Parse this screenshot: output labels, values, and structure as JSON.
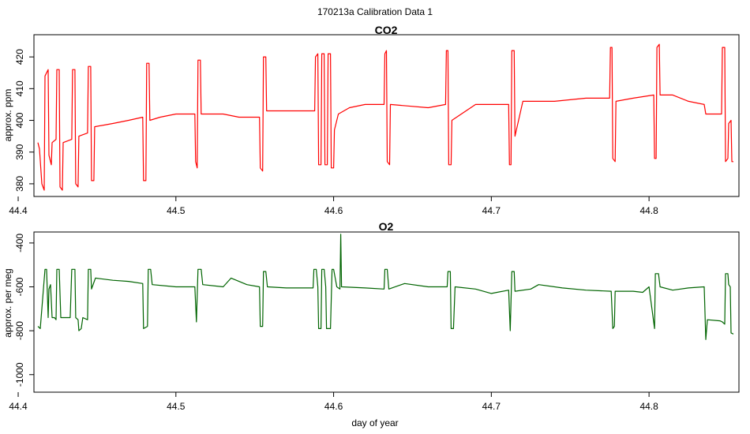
{
  "figure_title": "170213a   Calibration Data 1",
  "xlabel": "day of year",
  "chart_data": [
    {
      "type": "line",
      "title": "CO2",
      "xlabel": "",
      "ylabel": "approx. ppm",
      "xlim": [
        44.41,
        44.857
      ],
      "ylim": [
        376,
        427
      ],
      "xticks": [
        44.4,
        44.5,
        44.6,
        44.7,
        44.8
      ],
      "xtick_labels": [
        "44.4",
        "44.5",
        "44.6",
        "44.7",
        "44.8"
      ],
      "yticks": [
        380,
        390,
        400,
        410,
        420
      ],
      "ytick_labels": [
        "380",
        "390",
        "400",
        "410",
        "420"
      ],
      "grid": false,
      "legend": "none",
      "series": [
        {
          "color": "#ff0000",
          "values": [
            [
              44.4125,
              393
            ],
            [
              44.4135,
              391
            ],
            [
              44.415,
              380
            ],
            [
              44.4165,
              378
            ],
            [
              44.417,
              414
            ],
            [
              44.419,
              416
            ],
            [
              44.4195,
              389
            ],
            [
              44.421,
              386
            ],
            [
              44.4215,
              393
            ],
            [
              44.424,
              394
            ],
            [
              44.4245,
              416
            ],
            [
              44.426,
              416
            ],
            [
              44.4265,
              379
            ],
            [
              44.428,
              378
            ],
            [
              44.4285,
              393
            ],
            [
              44.434,
              394
            ],
            [
              44.4345,
              416
            ],
            [
              44.436,
              416
            ],
            [
              44.4365,
              380
            ],
            [
              44.438,
              379
            ],
            [
              44.4385,
              395
            ],
            [
              44.444,
              396
            ],
            [
              44.4445,
              417
            ],
            [
              44.446,
              417
            ],
            [
              44.4465,
              381
            ],
            [
              44.448,
              381
            ],
            [
              44.4485,
              398
            ],
            [
              44.46,
              399
            ],
            [
              44.47,
              400
            ],
            [
              44.479,
              401
            ],
            [
              44.4795,
              381
            ],
            [
              44.481,
              381
            ],
            [
              44.4815,
              418
            ],
            [
              44.483,
              418
            ],
            [
              44.4835,
              400
            ],
            [
              44.49,
              401
            ],
            [
              44.5,
              402
            ],
            [
              44.512,
              402
            ],
            [
              44.5125,
              387
            ],
            [
              44.5135,
              385
            ],
            [
              44.514,
              419
            ],
            [
              44.5155,
              419
            ],
            [
              44.516,
              402
            ],
            [
              44.53,
              402
            ],
            [
              44.54,
              401
            ],
            [
              44.553,
              401
            ],
            [
              44.5535,
              385
            ],
            [
              44.555,
              384
            ],
            [
              44.5555,
              420
            ],
            [
              44.557,
              420
            ],
            [
              44.5575,
              403
            ],
            [
              44.57,
              403
            ],
            [
              44.585,
              403
            ],
            [
              44.588,
              403
            ],
            [
              44.5885,
              420
            ],
            [
              44.59,
              421
            ],
            [
              44.5905,
              386
            ],
            [
              44.592,
              386
            ],
            [
              44.5925,
              421
            ],
            [
              44.594,
              421
            ],
            [
              44.5945,
              386
            ],
            [
              44.596,
              386
            ],
            [
              44.5965,
              421
            ],
            [
              44.598,
              421
            ],
            [
              44.5985,
              385
            ],
            [
              44.6,
              385
            ],
            [
              44.6005,
              397
            ],
            [
              44.603,
              402
            ],
            [
              44.61,
              404
            ],
            [
              44.62,
              405
            ],
            [
              44.632,
              405
            ],
            [
              44.6325,
              421
            ],
            [
              44.6335,
              422
            ],
            [
              44.634,
              387
            ],
            [
              44.6355,
              386
            ],
            [
              44.636,
              405
            ],
            [
              44.66,
              404
            ],
            [
              44.671,
              405
            ],
            [
              44.6715,
              422
            ],
            [
              44.6725,
              422
            ],
            [
              44.673,
              386
            ],
            [
              44.6745,
              386
            ],
            [
              44.675,
              400
            ],
            [
              44.69,
              405
            ],
            [
              44.705,
              405
            ],
            [
              44.711,
              405
            ],
            [
              44.7115,
              386
            ],
            [
              44.7125,
              386
            ],
            [
              44.713,
              422
            ],
            [
              44.7145,
              422
            ],
            [
              44.715,
              395
            ],
            [
              44.72,
              406
            ],
            [
              44.74,
              406
            ],
            [
              44.76,
              407
            ],
            [
              44.775,
              407
            ],
            [
              44.7755,
              423
            ],
            [
              44.7765,
              423
            ],
            [
              44.777,
              388
            ],
            [
              44.7785,
              387
            ],
            [
              44.779,
              406
            ],
            [
              44.79,
              407
            ],
            [
              44.803,
              408
            ],
            [
              44.8035,
              388
            ],
            [
              44.8045,
              388
            ],
            [
              44.805,
              423
            ],
            [
              44.8065,
              424
            ],
            [
              44.807,
              408
            ],
            [
              44.815,
              408
            ],
            [
              44.825,
              406
            ],
            [
              44.835,
              405
            ],
            [
              44.836,
              402
            ],
            [
              44.846,
              402
            ],
            [
              44.8465,
              423
            ],
            [
              44.848,
              423
            ],
            [
              44.8485,
              387
            ],
            [
              44.85,
              388
            ],
            [
              44.8505,
              399
            ],
            [
              44.852,
              400
            ],
            [
              44.8525,
              387
            ],
            [
              44.8535,
              387
            ]
          ]
        }
      ]
    },
    {
      "type": "line",
      "title": "O2",
      "xlabel": "day of year",
      "ylabel": "approx. per meg",
      "xlim": [
        44.41,
        44.857
      ],
      "ylim": [
        -1080,
        -350
      ],
      "xticks": [
        44.4,
        44.5,
        44.6,
        44.7,
        44.8
      ],
      "xtick_labels": [
        "44.4",
        "44.5",
        "44.6",
        "44.7",
        "44.8"
      ],
      "yticks": [
        -1000,
        -800,
        -600,
        -400
      ],
      "ytick_labels": [
        "-1000",
        "-800",
        "-600",
        "-400"
      ],
      "grid": false,
      "legend": "none",
      "series": [
        {
          "color": "#006400",
          "values": [
            [
              44.4125,
              -780
            ],
            [
              44.414,
              -790
            ],
            [
              44.417,
              -520
            ],
            [
              44.418,
              -520
            ],
            [
              44.419,
              -740
            ],
            [
              44.4195,
              -610
            ],
            [
              44.4205,
              -590
            ],
            [
              44.4215,
              -740
            ],
            [
              44.423,
              -740
            ],
            [
              44.424,
              -750
            ],
            [
              44.4245,
              -520
            ],
            [
              44.426,
              -520
            ],
            [
              44.427,
              -740
            ],
            [
              44.433,
              -740
            ],
            [
              44.434,
              -520
            ],
            [
              44.436,
              -520
            ],
            [
              44.4365,
              -740
            ],
            [
              44.438,
              -750
            ],
            [
              44.4385,
              -800
            ],
            [
              44.44,
              -790
            ],
            [
              44.441,
              -740
            ],
            [
              44.444,
              -750
            ],
            [
              44.4445,
              -520
            ],
            [
              44.446,
              -520
            ],
            [
              44.4465,
              -610
            ],
            [
              44.448,
              -580
            ],
            [
              44.449,
              -560
            ],
            [
              44.46,
              -570
            ],
            [
              44.47,
              -575
            ],
            [
              44.479,
              -585
            ],
            [
              44.4795,
              -790
            ],
            [
              44.482,
              -780
            ],
            [
              44.4825,
              -520
            ],
            [
              44.484,
              -520
            ],
            [
              44.485,
              -590
            ],
            [
              44.5,
              -600
            ],
            [
              44.512,
              -600
            ],
            [
              44.513,
              -760
            ],
            [
              44.514,
              -520
            ],
            [
              44.516,
              -520
            ],
            [
              44.517,
              -590
            ],
            [
              44.53,
              -600
            ],
            [
              44.535,
              -560
            ],
            [
              44.545,
              -590
            ],
            [
              44.553,
              -600
            ],
            [
              44.5535,
              -780
            ],
            [
              44.555,
              -780
            ],
            [
              44.5555,
              -530
            ],
            [
              44.557,
              -530
            ],
            [
              44.558,
              -600
            ],
            [
              44.57,
              -605
            ],
            [
              44.587,
              -605
            ],
            [
              44.5875,
              -520
            ],
            [
              44.589,
              -520
            ],
            [
              44.59,
              -600
            ],
            [
              44.5905,
              -790
            ],
            [
              44.592,
              -790
            ],
            [
              44.5925,
              -520
            ],
            [
              44.594,
              -520
            ],
            [
              44.595,
              -600
            ],
            [
              44.5955,
              -790
            ],
            [
              44.598,
              -790
            ],
            [
              44.599,
              -520
            ],
            [
              44.6,
              -520
            ],
            [
              44.602,
              -600
            ],
            [
              44.604,
              -610
            ],
            [
              44.6045,
              -360
            ],
            [
              44.605,
              -600
            ],
            [
              44.62,
              -605
            ],
            [
              44.632,
              -610
            ],
            [
              44.6325,
              -520
            ],
            [
              44.634,
              -520
            ],
            [
              44.635,
              -610
            ],
            [
              44.645,
              -585
            ],
            [
              44.66,
              -600
            ],
            [
              44.672,
              -600
            ],
            [
              44.6725,
              -530
            ],
            [
              44.674,
              -530
            ],
            [
              44.6745,
              -790
            ],
            [
              44.676,
              -790
            ],
            [
              44.677,
              -600
            ],
            [
              44.69,
              -610
            ],
            [
              44.7,
              -630
            ],
            [
              44.711,
              -615
            ],
            [
              44.712,
              -800
            ],
            [
              44.713,
              -530
            ],
            [
              44.7145,
              -530
            ],
            [
              44.715,
              -620
            ],
            [
              44.725,
              -610
            ],
            [
              44.73,
              -590
            ],
            [
              44.745,
              -605
            ],
            [
              44.76,
              -615
            ],
            [
              44.776,
              -620
            ],
            [
              44.777,
              -790
            ],
            [
              44.778,
              -780
            ],
            [
              44.7785,
              -620
            ],
            [
              44.79,
              -620
            ],
            [
              44.796,
              -625
            ],
            [
              44.8,
              -600
            ],
            [
              44.8035,
              -790
            ],
            [
              44.804,
              -540
            ],
            [
              44.806,
              -540
            ],
            [
              44.807,
              -600
            ],
            [
              44.815,
              -615
            ],
            [
              44.825,
              -605
            ],
            [
              44.835,
              -600
            ],
            [
              44.836,
              -840
            ],
            [
              44.837,
              -750
            ],
            [
              44.845,
              -755
            ],
            [
              44.8465,
              -760
            ],
            [
              44.848,
              -770
            ],
            [
              44.8485,
              -540
            ],
            [
              44.85,
              -540
            ],
            [
              44.8505,
              -590
            ],
            [
              44.8515,
              -600
            ],
            [
              44.852,
              -810
            ],
            [
              44.8535,
              -815
            ]
          ]
        }
      ]
    }
  ]
}
